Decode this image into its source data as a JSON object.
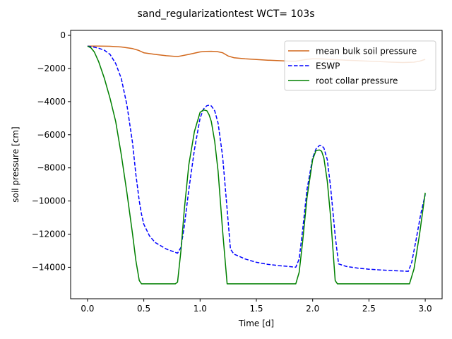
{
  "chart_data": {
    "type": "line",
    "title": "sand_regularizationtest  WCT= 103s",
    "xlabel": "Time [d]",
    "ylabel": "soil pressure [cm]",
    "xlim": [
      -0.15,
      3.15
    ],
    "ylim": [
      -15900,
      300
    ],
    "xticks": [
      0.0,
      0.5,
      1.0,
      1.5,
      2.0,
      2.5,
      3.0
    ],
    "xtick_labels": [
      "0.0",
      "0.5",
      "1.0",
      "1.5",
      "2.0",
      "2.5",
      "3.0"
    ],
    "yticks": [
      0,
      -2000,
      -4000,
      -6000,
      -8000,
      -10000,
      -12000,
      -14000
    ],
    "ytick_labels": [
      "0",
      "−2000",
      "−4000",
      "−6000",
      "−8000",
      "−10000",
      "−12000",
      "−14000"
    ],
    "grid": false,
    "legend_position": "top-right",
    "series": [
      {
        "name": "mean bulk soil pressure",
        "color": "#d2691e",
        "dash": "solid",
        "x": [
          0.0,
          0.1,
          0.2,
          0.3,
          0.4,
          0.45,
          0.5,
          0.6,
          0.7,
          0.8,
          0.9,
          1.0,
          1.05,
          1.1,
          1.15,
          1.2,
          1.25,
          1.3,
          1.4,
          1.5,
          1.6,
          1.7,
          1.8,
          1.85,
          1.9,
          1.95,
          2.0,
          2.05,
          2.1,
          2.2,
          2.3,
          2.4,
          2.5,
          2.6,
          2.7,
          2.8,
          2.9,
          2.95,
          3.0
        ],
        "y": [
          -650,
          -650,
          -660,
          -700,
          -800,
          -900,
          -1050,
          -1150,
          -1230,
          -1280,
          -1150,
          -1000,
          -970,
          -960,
          -980,
          -1050,
          -1250,
          -1350,
          -1420,
          -1460,
          -1500,
          -1530,
          -1560,
          -1560,
          -1500,
          -1450,
          -1420,
          -1420,
          -1430,
          -1470,
          -1500,
          -1530,
          -1560,
          -1590,
          -1620,
          -1640,
          -1620,
          -1560,
          -1450
        ]
      },
      {
        "name": "ESWP",
        "color": "#0000ff",
        "dash": "dashed",
        "x": [
          0.0,
          0.05,
          0.1,
          0.15,
          0.2,
          0.25,
          0.3,
          0.35,
          0.4,
          0.43,
          0.46,
          0.48,
          0.5,
          0.55,
          0.6,
          0.7,
          0.8,
          0.83,
          0.86,
          0.9,
          0.95,
          1.0,
          1.03,
          1.06,
          1.08,
          1.1,
          1.13,
          1.16,
          1.2,
          1.24,
          1.27,
          1.3,
          1.4,
          1.5,
          1.6,
          1.7,
          1.8,
          1.85,
          1.88,
          1.91,
          1.95,
          2.0,
          2.03,
          2.06,
          2.08,
          2.1,
          2.13,
          2.16,
          2.2,
          2.23,
          2.3,
          2.4,
          2.5,
          2.6,
          2.7,
          2.8,
          2.85,
          2.88,
          2.92,
          2.96,
          3.0
        ],
        "y": [
          -650,
          -700,
          -780,
          -900,
          -1150,
          -1700,
          -2600,
          -4200,
          -6500,
          -8400,
          -10000,
          -10800,
          -11400,
          -12100,
          -12500,
          -12900,
          -13150,
          -12800,
          -11500,
          -9300,
          -6900,
          -5000,
          -4450,
          -4250,
          -4220,
          -4260,
          -4550,
          -5300,
          -7300,
          -10500,
          -12900,
          -13200,
          -13500,
          -13700,
          -13820,
          -13900,
          -13960,
          -14000,
          -13500,
          -11800,
          -9300,
          -7400,
          -6850,
          -6650,
          -6660,
          -6800,
          -7500,
          -9200,
          -12100,
          -13800,
          -13950,
          -14050,
          -14120,
          -14160,
          -14200,
          -14230,
          -14240,
          -13700,
          -12300,
          -10800,
          -9600
        ]
      },
      {
        "name": "root collar pressure",
        "color": "#008000",
        "dash": "solid",
        "x": [
          0.0,
          0.03,
          0.06,
          0.1,
          0.15,
          0.2,
          0.25,
          0.3,
          0.35,
          0.4,
          0.43,
          0.46,
          0.48,
          0.5,
          0.6,
          0.7,
          0.78,
          0.8,
          0.83,
          0.86,
          0.9,
          0.95,
          1.0,
          1.03,
          1.06,
          1.08,
          1.1,
          1.13,
          1.16,
          1.2,
          1.24,
          1.27,
          1.3,
          1.4,
          1.5,
          1.6,
          1.7,
          1.8,
          1.85,
          1.88,
          1.91,
          1.95,
          2.0,
          2.03,
          2.06,
          2.08,
          2.1,
          2.13,
          2.16,
          2.2,
          2.22,
          2.3,
          2.4,
          2.5,
          2.6,
          2.7,
          2.8,
          2.86,
          2.9,
          2.95,
          3.0
        ],
        "y": [
          -650,
          -750,
          -1000,
          -1600,
          -2600,
          -3800,
          -5200,
          -7200,
          -9500,
          -12000,
          -13600,
          -14800,
          -15000,
          -15000,
          -15000,
          -15000,
          -15000,
          -14900,
          -13000,
          -10500,
          -7800,
          -5800,
          -4650,
          -4500,
          -4550,
          -4800,
          -5200,
          -6400,
          -8200,
          -11800,
          -15000,
          -15000,
          -15000,
          -15000,
          -15000,
          -15000,
          -15000,
          -15000,
          -15000,
          -14300,
          -12500,
          -9800,
          -7500,
          -6950,
          -6920,
          -7000,
          -7400,
          -8800,
          -11000,
          -14800,
          -15000,
          -15000,
          -15000,
          -15000,
          -15000,
          -15000,
          -15000,
          -15000,
          -14100,
          -12000,
          -9500
        ]
      }
    ]
  }
}
